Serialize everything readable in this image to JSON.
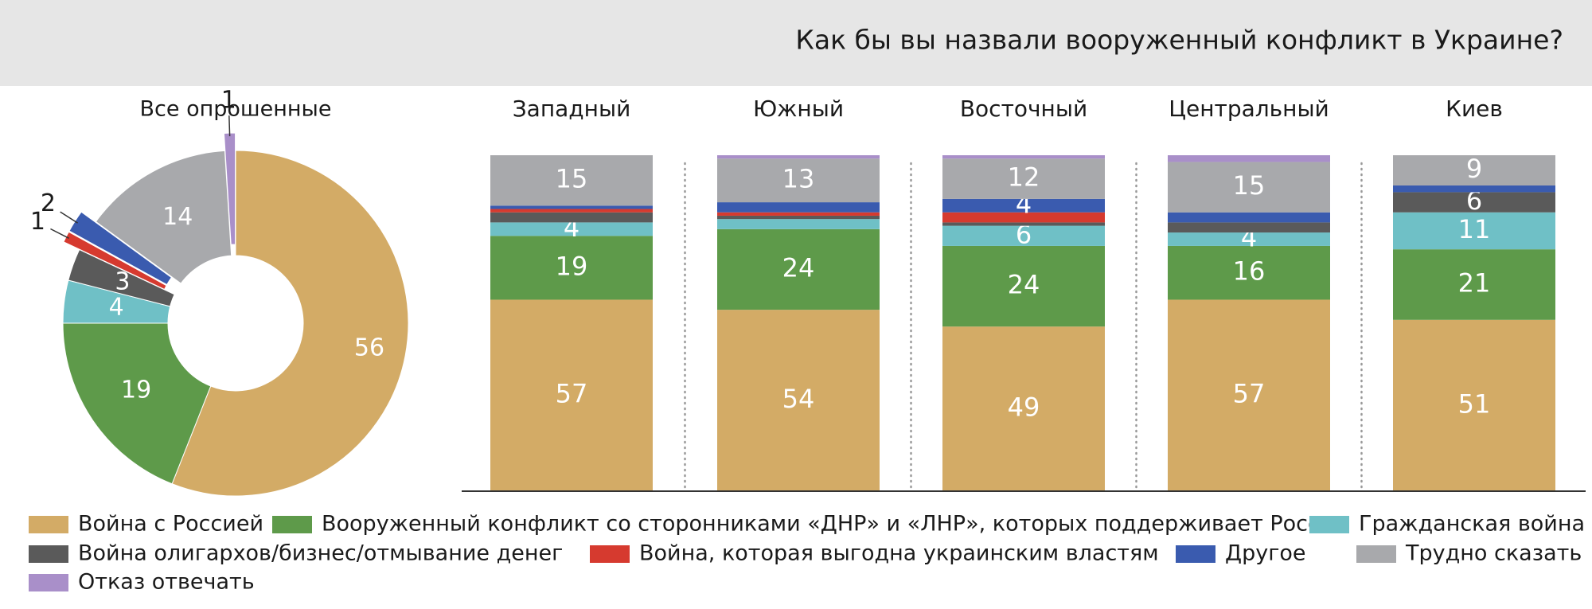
{
  "chart_data": [
    {
      "type": "pie",
      "title": "Все опрошенные",
      "values": [
        56,
        19,
        4,
        3,
        1,
        2,
        14,
        1
      ],
      "colors": [
        "#d3ab66",
        "#5e9a4a",
        "#6fc0c6",
        "#5a5a5a",
        "#d63a2f",
        "#3a5baf",
        "#a8a9ac",
        "#a98fc9"
      ]
    },
    {
      "type": "stacked_bar",
      "title": "Как бы вы назвали вооруженный конфликт в Украине?",
      "categories": [
        "Западный",
        "Южный",
        "Восточный",
        "Центральный",
        "Киев"
      ],
      "ylim": [
        0,
        100
      ],
      "series": [
        {
          "name": "Война с Россией",
          "color": "#d3ab66",
          "values": [
            57,
            54,
            49,
            57,
            51
          ]
        },
        {
          "name": "Вооруженный конфликт со сторонниками «ДНР» и «ЛНР», которых поддерживает Россия",
          "color": "#5e9a4a",
          "values": [
            19,
            24,
            24,
            16,
            21
          ]
        },
        {
          "name": "Гражданская война",
          "color": "#6fc0c6",
          "values": [
            4,
            3,
            6,
            4,
            11
          ]
        },
        {
          "name": "Война олигархов/бизнес/отмывание денег",
          "color": "#5a5a5a",
          "values": [
            3,
            1,
            1,
            3,
            6
          ]
        },
        {
          "name": "Война, которая выгодна украинским властям",
          "color": "#d63a2f",
          "values": [
            1,
            1,
            3,
            0,
            0
          ]
        },
        {
          "name": "Другое",
          "color": "#3a5baf",
          "values": [
            1,
            3,
            4,
            3,
            2
          ]
        },
        {
          "name": "Трудно сказать",
          "color": "#a8a9ac",
          "values": [
            15,
            13,
            12,
            15,
            9
          ]
        },
        {
          "name": "Отказ отвечать",
          "color": "#a98fc9",
          "values": [
            0,
            1,
            1,
            2,
            0
          ]
        }
      ]
    }
  ]
}
